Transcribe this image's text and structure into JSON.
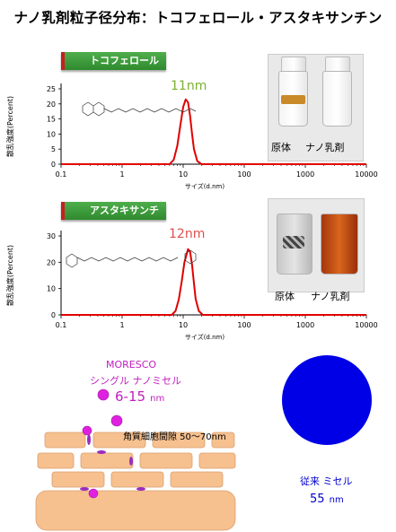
{
  "title": "ナノ乳剤粒子径分布：トコフェロール・アスタキサンチン",
  "chart_data": [
    {
      "type": "line",
      "title": "トコフェロール",
      "peak_label": "11nm",
      "xlabel": "サイズ(d.nm)",
      "ylabel": "散乱強度(Percent)",
      "x_scale": "log",
      "xlim": [
        0.1,
        10000
      ],
      "ylim": [
        0,
        25
      ],
      "x_ticks": [
        "0.1",
        "1",
        "10",
        "100",
        "1000",
        "10000"
      ],
      "y_ticks": [
        "0",
        "5",
        "10",
        "15",
        "20",
        "25"
      ],
      "series": [
        {
          "color": "#e00000",
          "x": [
            0.1,
            6,
            7,
            8,
            9,
            10,
            11,
            12,
            13,
            14,
            15,
            17,
            20,
            10000
          ],
          "y": [
            0,
            0,
            1.5,
            6,
            13,
            19,
            21.5,
            20.5,
            16,
            10,
            5,
            1,
            0,
            0
          ]
        }
      ],
      "photo_captions": [
        "原体",
        "ナノ乳剤"
      ]
    },
    {
      "type": "line",
      "title": "アスタキサンチン",
      "peak_label": "12nm",
      "xlabel": "サイズ(d.nm)",
      "ylabel": "散乱強度(Percent)",
      "x_scale": "log",
      "xlim": [
        0.1,
        10000
      ],
      "ylim": [
        0,
        30
      ],
      "x_ticks": [
        "0.1",
        "1",
        "10",
        "100",
        "1000",
        "10000"
      ],
      "y_ticks": [
        "0",
        "10",
        "20",
        "30"
      ],
      "series": [
        {
          "color": "#e00000",
          "x": [
            0.1,
            6.5,
            7.5,
            8.5,
            9.5,
            10.5,
            12,
            13,
            14,
            15,
            16,
            18,
            21,
            10000
          ],
          "y": [
            0,
            0,
            1.5,
            6,
            13,
            20,
            25,
            24,
            19,
            12,
            6,
            1.5,
            0,
            0
          ]
        }
      ],
      "photo_captions": [
        "原体",
        "ナノ乳剤"
      ]
    }
  ],
  "diagram": {
    "brand": "MORESCO",
    "micelle_name": "シングル ナノミセル",
    "micelle_size": "6-15",
    "micelle_unit": "nm",
    "gap_label": "角質細胞間隙 50～70nm",
    "conventional_name": "従来 ミセル",
    "conventional_size": "55",
    "conventional_unit": "nm",
    "colors": {
      "nano_particle": "#e020e0",
      "cell": "#f6c08f",
      "conventional": "#0000e6",
      "brand_text": "#c020c0"
    }
  }
}
